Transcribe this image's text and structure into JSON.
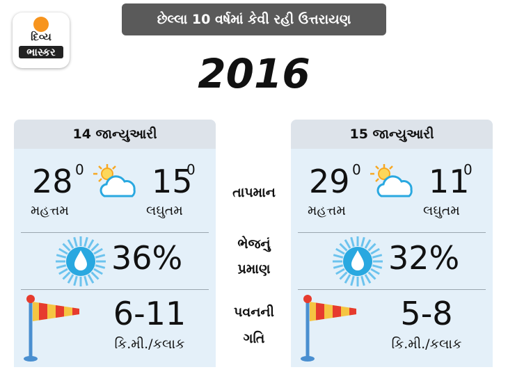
{
  "logo": {
    "line1": "દિવ્ય",
    "line2": "ભાસ્કર"
  },
  "banner": "છેલ્લા 10 વર્ષમાં કેવી રહી ઉત્તરાયણ",
  "year": "2016",
  "labels": {
    "temperature": "તાપમાન",
    "humidity": [
      "ભેજનું",
      "પ્રમાણ"
    ],
    "wind": [
      "પવનની",
      "ગતિ"
    ]
  },
  "days": [
    {
      "date": "14 જાન્યુઆરી",
      "max": "28",
      "degree": "0",
      "max_label": "મહત્તમ",
      "min": "15",
      "min_label": "લઘુતમ",
      "humidity": "36%",
      "wind": "6-11",
      "wind_unit": "કિ.મી./કલાક"
    },
    {
      "date": "15 જાન્યુઆરી",
      "max": "29",
      "degree": "0",
      "max_label": "મહત્તમ",
      "min": "11",
      "min_label": "લઘુતમ",
      "humidity": "32%",
      "wind": "5-8",
      "wind_unit": "કિ.મી./કલાક"
    }
  ]
}
